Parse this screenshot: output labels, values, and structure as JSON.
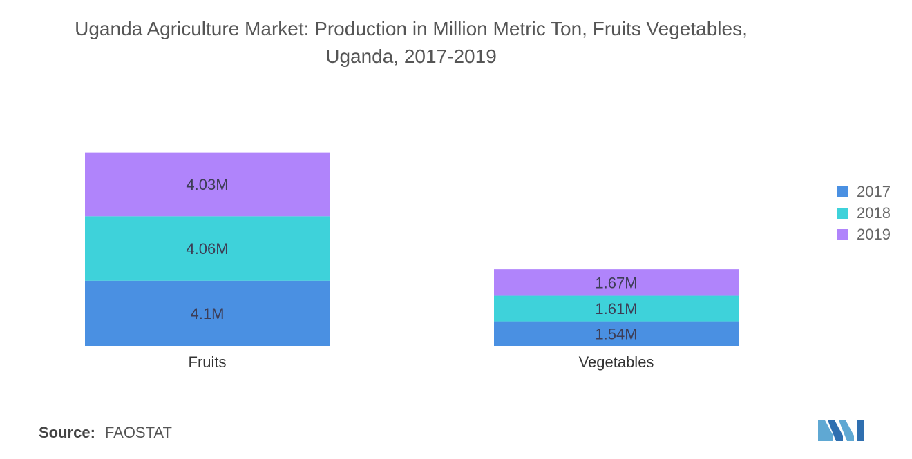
{
  "title_line1": "Uganda Agriculture Market: Production in Million Metric Ton, Fruits Vegetables,",
  "title_line2": "Uganda, 2017-2019",
  "source_label": "Source:",
  "source_value": "FAOSTAT",
  "logo_icon": "mordor-intelligence-logo-icon",
  "chart_data": {
    "type": "bar",
    "stacked": true,
    "title": "Uganda Agriculture Market: Production in Million Metric Ton, Fruits Vegetables, Uganda, 2017-2019",
    "categories": [
      "Fruits",
      "Vegetables"
    ],
    "series": [
      {
        "name": "2017",
        "values": [
          4.1,
          1.54
        ],
        "labels": [
          "4.1M",
          "1.54M"
        ],
        "color": "#4a90e2"
      },
      {
        "name": "2018",
        "values": [
          4.06,
          1.61
        ],
        "labels": [
          "4.06M",
          "1.61M"
        ],
        "color": "#3ed2da"
      },
      {
        "name": "2019",
        "values": [
          4.03,
          1.67
        ],
        "labels": [
          "4.03M",
          "1.67M"
        ],
        "color": "#b084fb"
      }
    ],
    "xlabel": "",
    "ylabel": "",
    "grid": false,
    "y_axis_visible": false,
    "legend_position": "right"
  }
}
